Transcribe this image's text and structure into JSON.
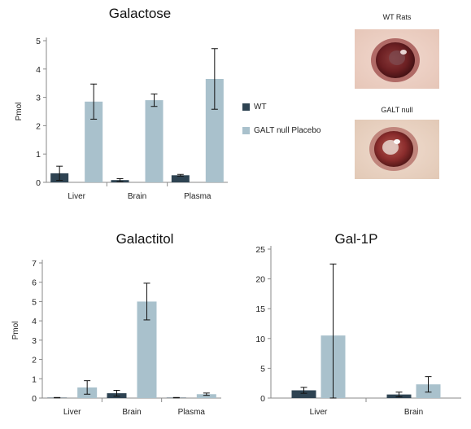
{
  "colors": {
    "wt": "#2e4352",
    "galt": "#a9c1cc",
    "axis": "#8a8a8a",
    "error": "#111111"
  },
  "legend": {
    "wt": "WT",
    "galt": "GALT null Placebo"
  },
  "photos": {
    "wt_label": "WT Rats",
    "galt_label": "GALT null"
  },
  "chart_data": [
    {
      "type": "bar",
      "title": "Galactose",
      "ylabel": "Pmol",
      "categories": [
        "Liver",
        "Brain",
        "Plasma"
      ],
      "ylim": [
        0,
        5
      ],
      "yticks": [
        "0",
        "1",
        "2",
        "3",
        "4",
        "5"
      ],
      "series": [
        {
          "name": "WT",
          "values": [
            0.32,
            0.08,
            0.25
          ],
          "errors": [
            0.25,
            0.05,
            0.03
          ]
        },
        {
          "name": "GALT null Placebo",
          "values": [
            2.85,
            2.9,
            3.65
          ],
          "errors": [
            0.62,
            0.22,
            1.07
          ]
        }
      ]
    },
    {
      "type": "bar",
      "title": "Galactitol",
      "ylabel": "Pmol",
      "categories": [
        "Liver",
        "Brain",
        "Plasma"
      ],
      "ylim": [
        0,
        7
      ],
      "yticks": [
        "0",
        "1",
        "2",
        "3",
        "4",
        "5",
        "6",
        "7"
      ],
      "series": [
        {
          "name": "WT",
          "values": [
            0.02,
            0.25,
            0.02
          ],
          "errors": [
            0.01,
            0.15,
            0.01
          ]
        },
        {
          "name": "GALT null Placebo",
          "values": [
            0.55,
            5.0,
            0.2
          ],
          "errors": [
            0.35,
            0.95,
            0.06
          ]
        }
      ]
    },
    {
      "type": "bar",
      "title": "Gal-1P",
      "ylabel": "",
      "categories": [
        "Liver",
        "Brain"
      ],
      "ylim": [
        0,
        25
      ],
      "yticks": [
        "0",
        "5",
        "10",
        "15",
        "20",
        "25"
      ],
      "series": [
        {
          "name": "WT",
          "values": [
            1.3,
            0.6
          ],
          "errors": [
            0.5,
            0.4
          ]
        },
        {
          "name": "GALT null Placebo",
          "values": [
            10.5,
            2.3
          ],
          "errors": [
            12.0,
            1.3
          ]
        }
      ]
    }
  ]
}
